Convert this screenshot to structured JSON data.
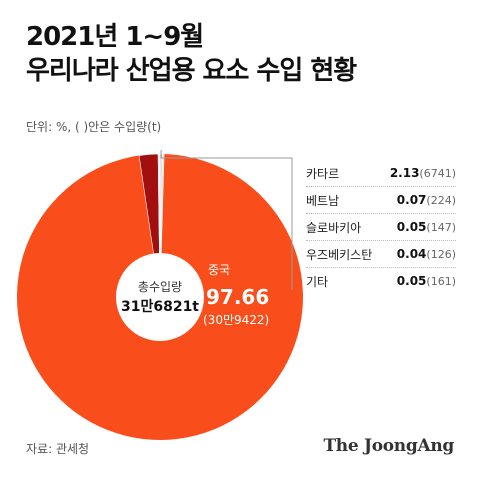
{
  "title_line1": "2021년 1~9월",
  "title_line2": "우리나라 산업용 요소 수입 현황",
  "unit_note": "단위: %, ( )안은 수입량(t)",
  "center": {
    "label": "총수입량",
    "value": "31만6821t"
  },
  "source": "자료: 관세청",
  "brand": "The JoongAng",
  "colors": {
    "china": "#f94e1c",
    "qatar": "#a30f0f",
    "others": "#d6d6d6",
    "leader_line": "#999999"
  },
  "chart_data": {
    "type": "pie",
    "style": "donut",
    "total": "31만6821t",
    "slices": [
      {
        "name": "중국",
        "value": 97.66,
        "value_label": "97.66",
        "amount": "30만9422"
      },
      {
        "name": "카타르",
        "value": 2.13,
        "value_label": "2.13",
        "amount": "6741"
      },
      {
        "name": "베트남",
        "value": 0.07,
        "value_label": "0.07",
        "amount": "224"
      },
      {
        "name": "슬로바키아",
        "value": 0.05,
        "value_label": "0.05",
        "amount": "147"
      },
      {
        "name": "우즈베키스탄",
        "value": 0.04,
        "value_label": "0.04",
        "amount": "126"
      },
      {
        "name": "기타",
        "value": 0.05,
        "value_label": "0.05",
        "amount": "161"
      }
    ],
    "legend_items": [
      {
        "label": "카타르",
        "value": "2.13",
        "amount": "(6741)"
      },
      {
        "label": "베트남",
        "value": "0.07",
        "amount": "(224)"
      },
      {
        "label": "슬로바키아",
        "value": "0.05",
        "amount": "(147)"
      },
      {
        "label": "우즈베키스탄",
        "value": "0.04",
        "amount": "(126)"
      },
      {
        "label": "기타",
        "value": "0.05",
        "amount": "(161)"
      }
    ],
    "callout": {
      "name": "중국",
      "value": "97.66",
      "amount": "(30만9422)"
    }
  }
}
